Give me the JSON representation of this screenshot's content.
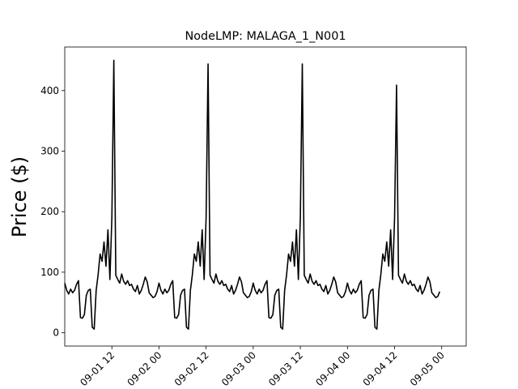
{
  "chart_data": {
    "type": "line",
    "title": "NodeLMP: MALAGA_1_N001",
    "xlabel": "",
    "ylabel": "Price ($)",
    "grid": false,
    "legend": "none",
    "line_color": "#000000",
    "x_unit": "hours",
    "xlim": [
      1.0,
      5.26
    ],
    "ylim": [
      -22,
      472
    ],
    "y_ticks": [
      0,
      100,
      200,
      300,
      400
    ],
    "x_ticks": [
      {
        "value": 1.5,
        "label": "09-01 12"
      },
      {
        "value": 2.0,
        "label": "09-02 00"
      },
      {
        "value": 2.5,
        "label": "09-02 12"
      },
      {
        "value": 3.0,
        "label": "09-03 00"
      },
      {
        "value": 3.5,
        "label": "09-03 12"
      },
      {
        "value": 4.0,
        "label": "09-04 00"
      },
      {
        "value": 4.5,
        "label": "09-04 12"
      },
      {
        "value": 5.0,
        "label": "09-05 00"
      }
    ],
    "day_profile_start": 0.0,
    "day_profile_step_hours": 1,
    "day_profile": [
      82,
      70,
      64,
      72,
      66,
      70,
      80,
      86,
      25,
      24,
      30,
      62,
      70,
      72,
      9,
      6,
      70,
      96,
      130,
      118,
      150,
      110,
      170,
      88,
      190,
      450,
      95,
      88,
      82,
      97,
      85,
      80,
      86,
      78,
      80,
      72,
      68,
      78,
      64,
      70,
      80,
      92,
      84,
      66,
      62,
      58,
      60,
      68
    ],
    "days": [
      {
        "start": 1.0,
        "spike": 450
      },
      {
        "start": 2.0,
        "spike": 444
      },
      {
        "start": 3.0,
        "spike": 444
      },
      {
        "start": 4.0,
        "spike": 409
      }
    ]
  }
}
